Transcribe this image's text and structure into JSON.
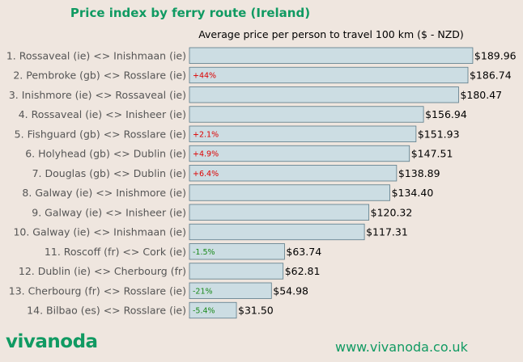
{
  "chart_data": {
    "type": "bar",
    "orientation": "horizontal",
    "title": "Price index by ferry route (Ireland)",
    "subtitle": "Average price per person to travel 100 km ($ - NZD)",
    "categories": [
      "1. Rossaveal (ie) <> Inishmaan (ie)",
      "2. Pembroke (gb) <> Rosslare (ie)",
      "3. Inishmore (ie) <> Rossaveal (ie)",
      "4. Rossaveal (ie) <> Inisheer (ie)",
      "5. Fishguard (gb) <> Rosslare (ie)",
      "6. Holyhead (gb) <> Dublin (ie)",
      "7. Douglas (gb) <> Dublin (ie)",
      "8. Galway (ie) <> Inishmore (ie)",
      "9. Galway (ie) <> Inisheer (ie)",
      "10. Galway (ie) <> Inishmaan (ie)",
      "11. Roscoff (fr) <> Cork (ie)",
      "12. Dublin (ie) <> Cherbourg (fr)",
      "13. Cherbourg (fr) <> Rosslare (ie)",
      "14. Bilbao (es) <> Rosslare (ie)"
    ],
    "values": [
      189.96,
      186.74,
      180.47,
      156.94,
      151.93,
      147.51,
      138.89,
      134.4,
      120.32,
      117.31,
      63.74,
      62.81,
      54.98,
      31.5
    ],
    "value_labels": [
      "$189.96",
      "$186.74",
      "$180.47",
      "$156.94",
      "$151.93",
      "$147.51",
      "$138.89",
      "$134.40",
      "$120.32",
      "$117.31",
      "$63.74",
      "$62.81",
      "$54.98",
      "$31.50"
    ],
    "changes": [
      "",
      "+44%",
      "",
      "",
      "+2.1%",
      "+4.9%",
      "+6.4%",
      "",
      "",
      "",
      "-1.5%",
      "",
      "-21%",
      "-5.4%"
    ],
    "xlim": [
      0,
      190
    ],
    "grid": false,
    "colors": {
      "bar_fill": "#ccdde3",
      "bar_edge": "#5a7a88",
      "positive_change": "#dd0000",
      "negative_change": "#1a8a1a",
      "title": "#109a62"
    }
  },
  "footer": {
    "logo": "vivanoda",
    "website": "www.vivanoda.co.uk"
  }
}
